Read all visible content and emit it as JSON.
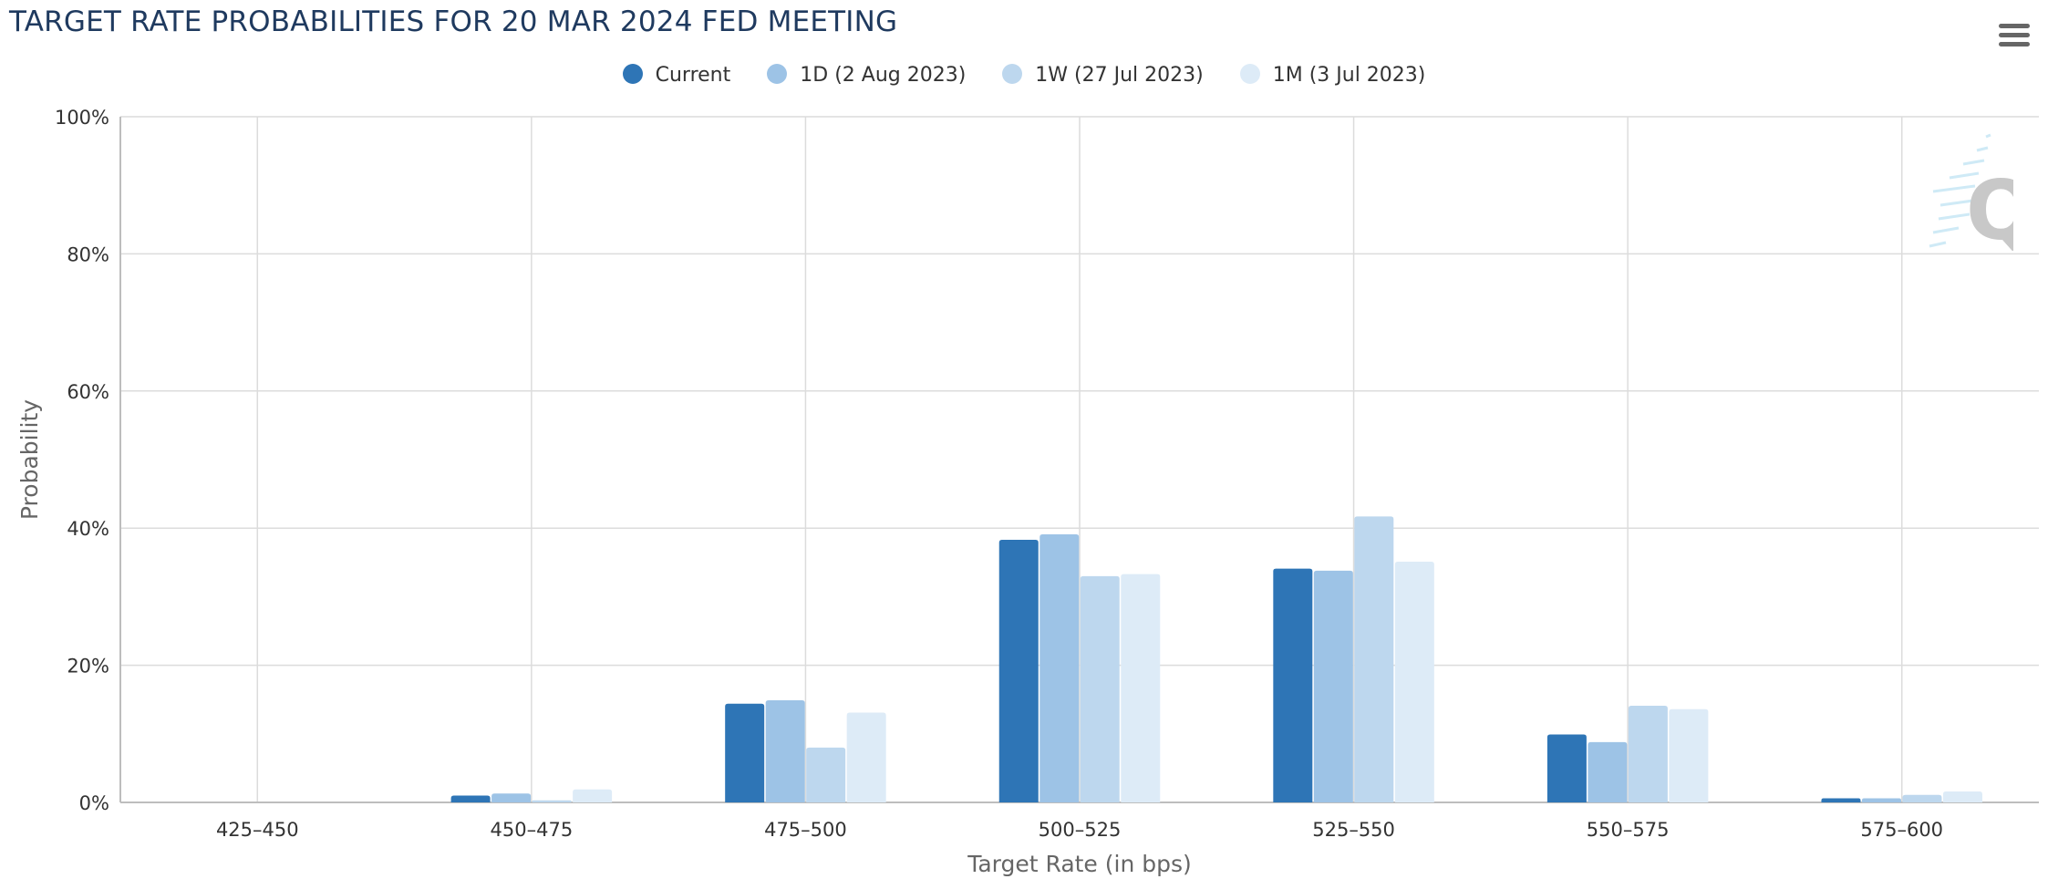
{
  "title": "TARGET RATE PROBABILITIES FOR 20 MAR 2024 FED MEETING",
  "menu_icon": "hamburger-menu-icon",
  "watermark_icon": "q-logo-icon",
  "chart_data": {
    "type": "bar",
    "title": "TARGET RATE PROBABILITIES FOR 20 MAR 2024 FED MEETING",
    "xlabel": "Target Rate (in bps)",
    "ylabel": "Probability",
    "ylim": [
      0,
      100
    ],
    "yticks": [
      "0%",
      "20%",
      "40%",
      "60%",
      "80%",
      "100%"
    ],
    "grid": true,
    "legend_position": "top-center",
    "categories": [
      "425–450",
      "450–475",
      "475–500",
      "500–525",
      "525–550",
      "550–575",
      "575–600"
    ],
    "series": [
      {
        "name": "Current",
        "color": "#2e75b6",
        "values": [
          0,
          1.0,
          14.4,
          38.3,
          34.1,
          9.9,
          0.6
        ]
      },
      {
        "name": "1D (2 Aug 2023)",
        "color": "#9dc3e6",
        "values": [
          0,
          1.3,
          14.9,
          39.1,
          33.8,
          8.8,
          0.6
        ]
      },
      {
        "name": "1W (27 Jul 2023)",
        "color": "#bdd7ee",
        "values": [
          0,
          0.3,
          8.0,
          33.0,
          41.7,
          14.1,
          1.1
        ]
      },
      {
        "name": "1M (3 Jul 2023)",
        "color": "#ddebf7",
        "values": [
          0,
          1.9,
          13.1,
          33.3,
          35.1,
          13.6,
          1.6
        ]
      }
    ]
  }
}
